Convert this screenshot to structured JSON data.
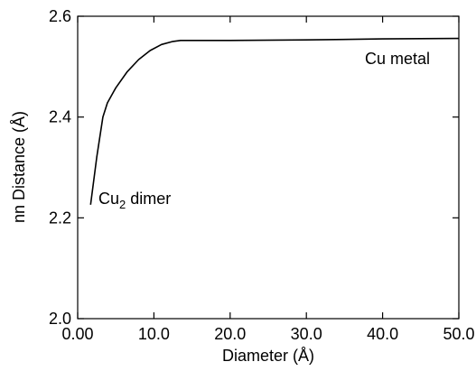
{
  "chart_data": {
    "type": "line",
    "xlabel": "Diameter (Å)",
    "ylabel": "nn Distance (Å)",
    "xlim": [
      0,
      50
    ],
    "ylim": [
      2.0,
      2.6
    ],
    "x_ticks": [
      "0.00",
      "10.0",
      "20.0",
      "30.0",
      "40.0",
      "50.0"
    ],
    "x_tick_values": [
      0,
      10,
      20,
      30,
      40,
      50
    ],
    "y_ticks": [
      "2.0",
      "2.2",
      "2.4",
      "2.6"
    ],
    "y_tick_values": [
      2.0,
      2.2,
      2.4,
      2.6
    ],
    "grid": false,
    "series": [
      {
        "color": "#000000",
        "x": [
          1.7,
          2.5,
          3.3,
          3.9,
          5.0,
          6.5,
          8.0,
          9.5,
          11.0,
          12.5,
          13.5,
          20.0,
          30.0,
          40.0,
          50.0
        ],
        "y": [
          2.226,
          2.32,
          2.4,
          2.428,
          2.458,
          2.49,
          2.514,
          2.532,
          2.544,
          2.55,
          2.552,
          2.552,
          2.553,
          2.555,
          2.556
        ]
      }
    ],
    "annotations": {
      "cu_metal": "Cu metal",
      "cu2_prefix": "Cu",
      "cu2_sub": "2",
      "cu2_suffix": " dimer"
    }
  }
}
